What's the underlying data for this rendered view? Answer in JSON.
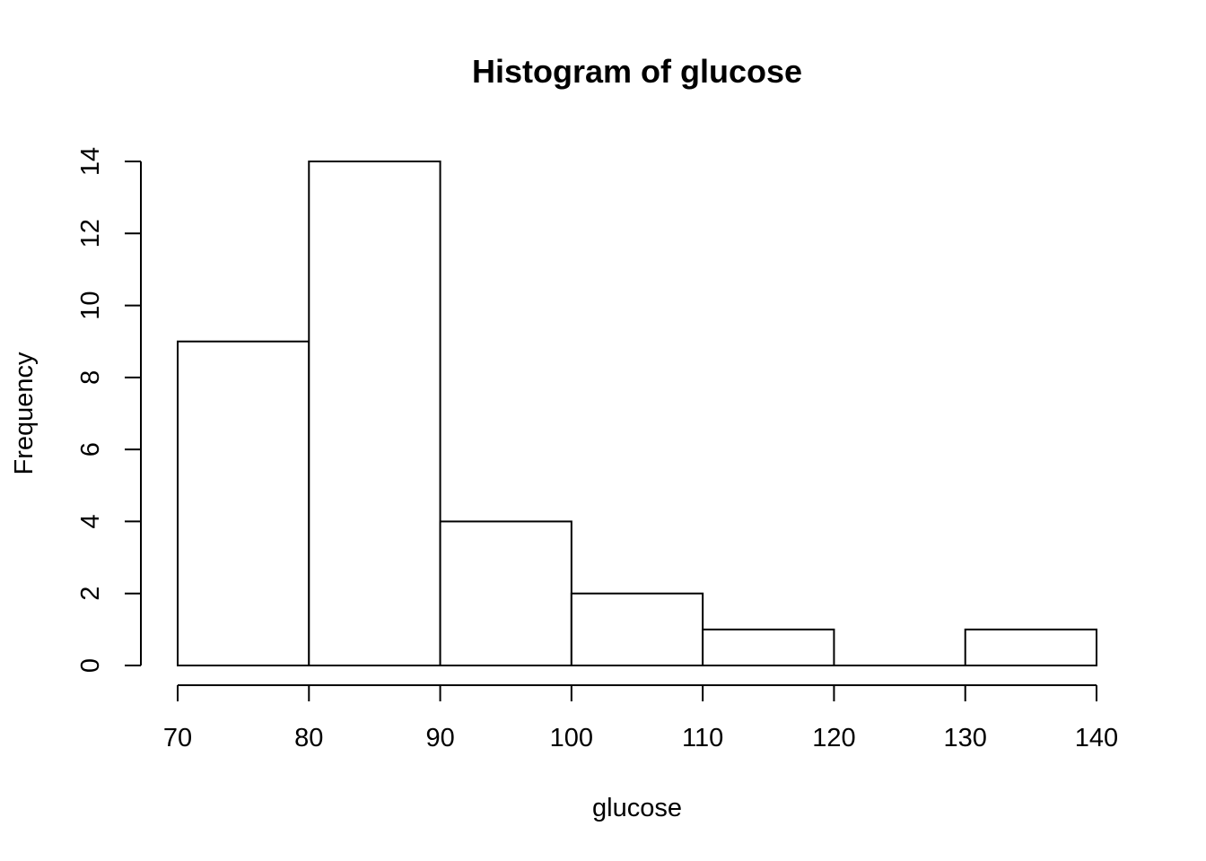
{
  "chart_data": {
    "type": "bar",
    "title": "Histogram of glucose",
    "xlabel": "glucose",
    "ylabel": "Frequency",
    "bins": [
      {
        "start": 70,
        "end": 80,
        "count": 9
      },
      {
        "start": 80,
        "end": 90,
        "count": 14
      },
      {
        "start": 90,
        "end": 100,
        "count": 4
      },
      {
        "start": 100,
        "end": 110,
        "count": 2
      },
      {
        "start": 110,
        "end": 120,
        "count": 1
      },
      {
        "start": 120,
        "end": 130,
        "count": 0
      },
      {
        "start": 130,
        "end": 140,
        "count": 1
      }
    ],
    "xlim": [
      70,
      140
    ],
    "ylim": [
      0,
      14
    ],
    "x_ticks": [
      70,
      80,
      90,
      100,
      110,
      120,
      130,
      140
    ],
    "y_ticks": [
      0,
      2,
      4,
      6,
      8,
      10,
      12,
      14
    ],
    "grid": false,
    "bar_fill": "#ffffff",
    "bar_stroke": "#000000"
  }
}
